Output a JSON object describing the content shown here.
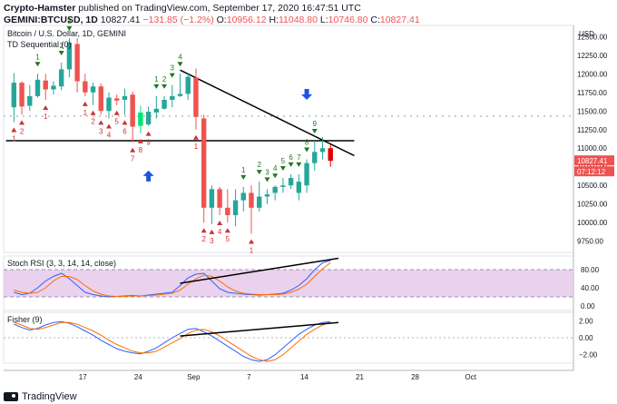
{
  "header": {
    "publisher": "Crypto-Hamster",
    "published_text": "published on TradingView.com, September 17, 2020 16:47:51 UTC",
    "symbol": "GEMINI:BTCUSD, 1D",
    "last": "10827.41",
    "change": "−131.85 (−1.2%)",
    "o_label": "O:",
    "o": "10956.12",
    "h_label": "H:",
    "h": "11048.80",
    "l_label": "L:",
    "l": "10746.80",
    "c_label": "C:",
    "c": "10827.41"
  },
  "main_pane": {
    "title": "Bitcoin / U.S. Dollar, 1D, GEMINI",
    "indicator": "TD Sequential (0)",
    "currency": "USD",
    "price_box": "10827.41",
    "countdown_box": "07:12:12"
  },
  "rsi_pane": {
    "title": "Stoch RSI (3, 3, 14, 14, close)"
  },
  "fisher_pane": {
    "title": "Fisher (9)"
  },
  "footer": {
    "brand": "TradingView"
  },
  "colors": {
    "up": "#26a69a",
    "down": "#ef5350",
    "highlight": "#00e676",
    "arrow": "#1e53e5",
    "td_up": "#1b7a1b",
    "td_down": "#d32f2f"
  },
  "chart_data": {
    "type": "candlestick",
    "price_axis": {
      "ticks": [
        12500,
        12250,
        12000,
        11750,
        11500,
        11250,
        11000,
        10750,
        10500,
        10250,
        10000,
        9750
      ],
      "tick_labels": [
        "12500.00",
        "12250.00",
        "12000.00",
        "11750.00",
        "11500.00",
        "11250.00",
        "11000.00",
        "10750.00",
        "10500.00",
        "10250.00",
        "10000.00",
        "9750.00"
      ],
      "range": [
        9600,
        12650
      ]
    },
    "x_axis": {
      "range": [
        0,
        72
      ],
      "ticks": [
        {
          "x": 10,
          "label": "17"
        },
        {
          "x": 17,
          "label": "24"
        },
        {
          "x": 24,
          "label": "Sep"
        },
        {
          "x": 31,
          "label": "7"
        },
        {
          "x": 38,
          "label": "14"
        },
        {
          "x": 45,
          "label": "21"
        },
        {
          "x": 52,
          "label": "28"
        },
        {
          "x": 59,
          "label": "Oct"
        }
      ]
    },
    "candles": [
      {
        "o": 11550,
        "h": 12010,
        "l": 11350,
        "c": 11880
      },
      {
        "o": 11880,
        "h": 11900,
        "l": 11450,
        "c": 11560
      },
      {
        "o": 11570,
        "h": 11850,
        "l": 11500,
        "c": 11700
      },
      {
        "o": 11700,
        "h": 12000,
        "l": 11680,
        "c": 11920
      },
      {
        "o": 11910,
        "h": 12000,
        "l": 11650,
        "c": 11790
      },
      {
        "o": 11790,
        "h": 11900,
        "l": 11720,
        "c": 11840
      },
      {
        "o": 11830,
        "h": 12150,
        "l": 11780,
        "c": 12060
      },
      {
        "o": 12060,
        "h": 12480,
        "l": 11950,
        "c": 12420
      },
      {
        "o": 12400,
        "h": 12480,
        "l": 11750,
        "c": 11900
      },
      {
        "o": 11900,
        "h": 12000,
        "l": 11700,
        "c": 11750
      },
      {
        "o": 11750,
        "h": 11880,
        "l": 11580,
        "c": 11830
      },
      {
        "o": 11830,
        "h": 11870,
        "l": 11450,
        "c": 11500
      },
      {
        "o": 11500,
        "h": 11750,
        "l": 11400,
        "c": 11680
      },
      {
        "o": 11670,
        "h": 11720,
        "l": 11580,
        "c": 11640
      },
      {
        "o": 11650,
        "h": 11800,
        "l": 11450,
        "c": 11700
      },
      {
        "o": 11720,
        "h": 11760,
        "l": 11080,
        "c": 11290
      },
      {
        "o": 11300,
        "h": 11570,
        "l": 11200,
        "c": 11480
      },
      {
        "o": 11320,
        "h": 11560,
        "l": 11300,
        "c": 11490
      },
      {
        "o": 11480,
        "h": 11700,
        "l": 11400,
        "c": 11530
      },
      {
        "o": 11530,
        "h": 11700,
        "l": 11520,
        "c": 11650
      },
      {
        "o": 11650,
        "h": 11850,
        "l": 11550,
        "c": 11700
      },
      {
        "o": 11700,
        "h": 12000,
        "l": 11690,
        "c": 11730
      },
      {
        "o": 11730,
        "h": 12000,
        "l": 11650,
        "c": 11960
      },
      {
        "o": 11950,
        "h": 12070,
        "l": 11250,
        "c": 11420
      },
      {
        "o": 11400,
        "h": 11450,
        "l": 10000,
        "c": 10200
      },
      {
        "o": 10200,
        "h": 10500,
        "l": 9980,
        "c": 10450
      },
      {
        "o": 10450,
        "h": 10480,
        "l": 10100,
        "c": 10200
      },
      {
        "o": 10200,
        "h": 10450,
        "l": 10000,
        "c": 10100
      },
      {
        "o": 10100,
        "h": 10450,
        "l": 9950,
        "c": 10300
      },
      {
        "o": 10300,
        "h": 10480,
        "l": 10150,
        "c": 10400
      },
      {
        "o": 10400,
        "h": 10500,
        "l": 9850,
        "c": 10200
      },
      {
        "o": 10200,
        "h": 10550,
        "l": 10150,
        "c": 10350
      },
      {
        "o": 10350,
        "h": 10450,
        "l": 10250,
        "c": 10380
      },
      {
        "o": 10400,
        "h": 10500,
        "l": 10300,
        "c": 10480
      },
      {
        "o": 10480,
        "h": 10600,
        "l": 10400,
        "c": 10500
      },
      {
        "o": 10500,
        "h": 10650,
        "l": 10450,
        "c": 10600
      },
      {
        "o": 10400,
        "h": 10650,
        "l": 10300,
        "c": 10550
      },
      {
        "o": 10500,
        "h": 10850,
        "l": 10400,
        "c": 10800
      },
      {
        "o": 10800,
        "h": 11100,
        "l": 10700,
        "c": 10950
      },
      {
        "o": 10950,
        "h": 11150,
        "l": 10850,
        "c": 11000
      },
      {
        "o": 11000,
        "h": 11050,
        "l": 10750,
        "c": 10830
      }
    ],
    "highlight_candle_index": 16,
    "td_labels": [
      {
        "i": 0,
        "t": "1",
        "side": "below"
      },
      {
        "i": 1,
        "t": "2",
        "side": "below"
      },
      {
        "i": 3,
        "t": "1",
        "side": "above"
      },
      {
        "i": 4,
        "t": "1",
        "side": "below"
      },
      {
        "i": 6,
        "t": "2",
        "side": "above"
      },
      {
        "i": 7,
        "t": "3",
        "side": "above"
      },
      {
        "i": 9,
        "t": "1",
        "side": "below"
      },
      {
        "i": 10,
        "t": "2",
        "side": "below"
      },
      {
        "i": 11,
        "t": "3",
        "side": "below"
      },
      {
        "i": 12,
        "t": "4",
        "side": "below"
      },
      {
        "i": 13,
        "t": "5",
        "side": "below"
      },
      {
        "i": 14,
        "t": "6",
        "side": "below"
      },
      {
        "i": 15,
        "t": "7",
        "side": "below"
      },
      {
        "i": 16,
        "t": "8",
        "side": "below"
      },
      {
        "i": 17,
        "t": "9",
        "side": "below"
      },
      {
        "i": 18,
        "t": "1",
        "side": "above"
      },
      {
        "i": 19,
        "t": "2",
        "side": "above"
      },
      {
        "i": 20,
        "t": "3",
        "side": "above"
      },
      {
        "i": 21,
        "t": "4",
        "side": "above"
      },
      {
        "i": 23,
        "t": "1",
        "side": "below"
      },
      {
        "i": 24,
        "t": "2",
        "side": "below"
      },
      {
        "i": 25,
        "t": "3",
        "side": "below"
      },
      {
        "i": 26,
        "t": "4",
        "side": "below"
      },
      {
        "i": 27,
        "t": "5",
        "side": "below"
      },
      {
        "i": 30,
        "t": "1",
        "side": "below"
      },
      {
        "i": 29,
        "t": "1",
        "side": "above"
      },
      {
        "i": 31,
        "t": "2",
        "side": "above"
      },
      {
        "i": 32,
        "t": "3",
        "side": "above"
      },
      {
        "i": 33,
        "t": "4",
        "side": "above"
      },
      {
        "i": 34,
        "t": "5",
        "side": "above"
      },
      {
        "i": 35,
        "t": "6",
        "side": "above"
      },
      {
        "i": 36,
        "t": "7",
        "side": "above"
      },
      {
        "i": 37,
        "t": "8",
        "side": "above"
      },
      {
        "i": 38,
        "t": "9",
        "side": "above"
      }
    ],
    "blue_arrows": [
      {
        "i": 17,
        "dir": "up",
        "price": 10700
      },
      {
        "i": 37,
        "dir": "down",
        "price": 11650
      }
    ],
    "support_line": {
      "x1": -1,
      "x2": 43,
      "price": 11100
    },
    "trend_line": {
      "x1": 21,
      "p1": 12050,
      "x2": 43,
      "p2": 10900
    },
    "dotted_level": {
      "price": 11430
    },
    "stoch_rsi": {
      "ticks": [
        80,
        40,
        0
      ],
      "tick_labels": [
        "80.00",
        "40.00",
        "0.00"
      ],
      "range": [
        -10,
        110
      ],
      "band": [
        20,
        80
      ],
      "k": [
        30,
        25,
        28,
        40,
        55,
        65,
        72,
        60,
        45,
        30,
        25,
        22,
        20,
        21,
        22,
        23,
        22,
        24,
        26,
        28,
        30,
        45,
        62,
        70,
        72,
        55,
        38,
        30,
        28,
        26,
        25,
        24,
        25,
        26,
        28,
        35,
        45,
        60,
        80,
        95,
        100
      ],
      "d": [
        35,
        30,
        28,
        30,
        40,
        55,
        65,
        65,
        58,
        45,
        33,
        26,
        22,
        21,
        21,
        22,
        22,
        23,
        24,
        26,
        28,
        35,
        48,
        60,
        68,
        65,
        55,
        42,
        33,
        28,
        26,
        25,
        25,
        25,
        26,
        30,
        37,
        48,
        65,
        82,
        95
      ],
      "trend": {
        "x1": 21,
        "v1": 50,
        "x2": 41,
        "v2": 105
      }
    },
    "fisher": {
      "ticks": [
        2,
        0,
        -2
      ],
      "tick_labels": [
        "2.00",
        "0.00",
        "−2.00"
      ],
      "range": [
        -3,
        3
      ],
      "f": [
        1.6,
        1.2,
        0.9,
        1.1,
        1.5,
        1.8,
        1.9,
        1.7,
        1.3,
        0.8,
        0.3,
        -0.3,
        -0.8,
        -1.3,
        -1.6,
        -1.8,
        -1.9,
        -1.6,
        -1.2,
        -0.6,
        0.0,
        0.5,
        1.0,
        1.1,
        0.7,
        0.2,
        -0.4,
        -1.0,
        -1.6,
        -2.2,
        -2.6,
        -2.8,
        -2.6,
        -2.0,
        -1.2,
        -0.4,
        0.4,
        1.0,
        1.5,
        1.8,
        1.9
      ],
      "s": [
        1.8,
        1.5,
        1.1,
        1.0,
        1.2,
        1.5,
        1.8,
        1.8,
        1.6,
        1.2,
        0.8,
        0.3,
        -0.3,
        -0.8,
        -1.2,
        -1.6,
        -1.8,
        -1.8,
        -1.6,
        -1.1,
        -0.6,
        -0.1,
        0.5,
        0.9,
        1.0,
        0.7,
        0.2,
        -0.4,
        -1.0,
        -1.6,
        -2.2,
        -2.6,
        -2.8,
        -2.6,
        -2.0,
        -1.2,
        -0.4,
        0.4,
        1.0,
        1.5,
        1.8
      ],
      "trend": {
        "x1": 21,
        "v1": 0.2,
        "x2": 41,
        "v2": 1.8
      }
    }
  }
}
